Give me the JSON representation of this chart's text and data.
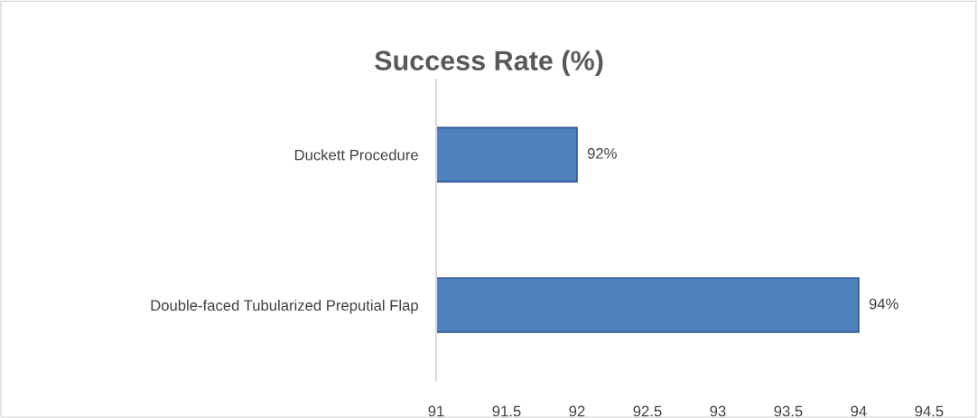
{
  "chart_data": {
    "type": "bar",
    "orientation": "horizontal",
    "title": "Success Rate (%)",
    "categories": [
      "Duckett Procedure",
      "Double-faced Tubularized Preputial Flap"
    ],
    "values": [
      92,
      94
    ],
    "color": "#4f81bd",
    "value_labels": [
      "92%",
      "94%"
    ],
    "xlim": [
      91,
      94.5
    ],
    "xticks": [
      91,
      91.5,
      92,
      92.5,
      93,
      93.5,
      94,
      94.5
    ],
    "grid": false,
    "legend": false
  }
}
